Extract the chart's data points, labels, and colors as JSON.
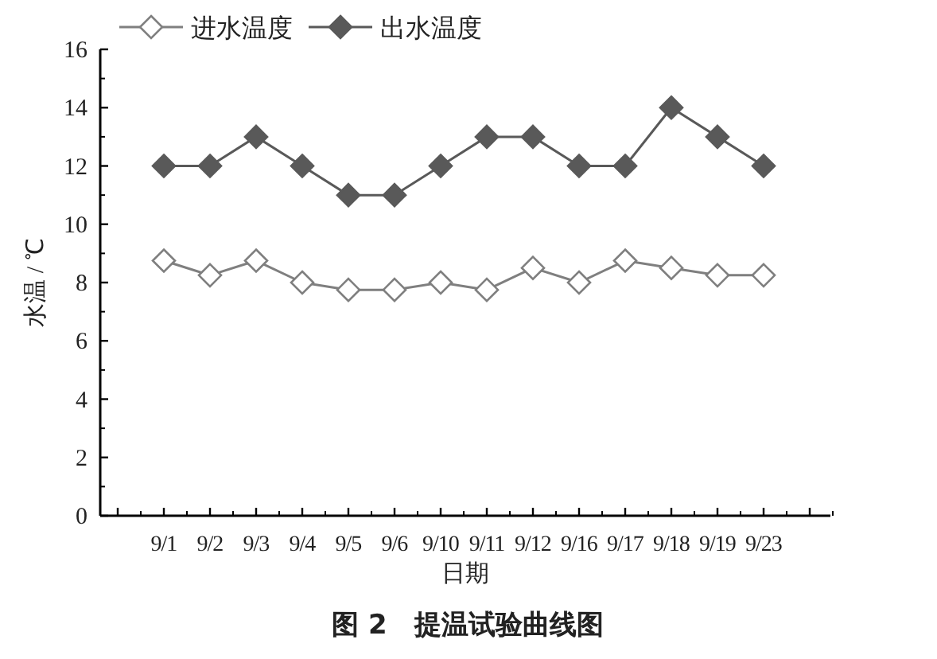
{
  "chart_data": {
    "type": "line",
    "title": "图 2　提温试验曲线图",
    "xlabel": "日期",
    "ylabel": "水温 / ℃",
    "categories": [
      "9/1",
      "9/2",
      "9/3",
      "9/4",
      "9/5",
      "9/6",
      "9/10",
      "9/11",
      "9/12",
      "9/16",
      "9/17",
      "9/18",
      "9/19",
      "9/23"
    ],
    "series": [
      {
        "name": "进水温度",
        "color": "#7f7f7f",
        "values": [
          8.75,
          8.25,
          8.75,
          8,
          7.75,
          7.75,
          8,
          7.75,
          8.5,
          8,
          8.75,
          8.5,
          8.25,
          8.25
        ]
      },
      {
        "name": "出水温度",
        "color": "#595959",
        "values": [
          12,
          12,
          13,
          12,
          11,
          11,
          12,
          13,
          13,
          12,
          12,
          14,
          13,
          12
        ]
      }
    ],
    "ylim": [
      0,
      16
    ],
    "yticks": [
      0,
      2,
      4,
      6,
      8,
      10,
      12,
      14,
      16
    ],
    "marker": "diamond",
    "legend": "top",
    "grid": false
  }
}
